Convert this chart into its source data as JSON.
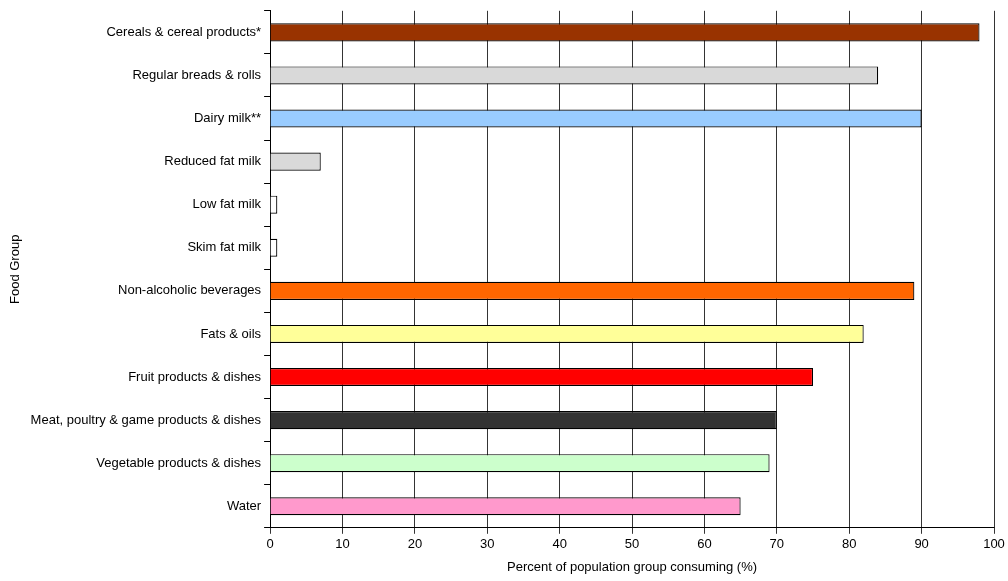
{
  "chart_data": {
    "type": "bar",
    "orientation": "horizontal",
    "xlabel": "Percent of population group consuming (%)",
    "ylabel": "Food Group",
    "categories": [
      "Cereals & cereal products*",
      "Regular breads & rolls",
      "Dairy milk**",
      "Reduced fat milk",
      "Low fat milk",
      "Skim fat milk",
      "Non-alcoholic beverages",
      "Fats & oils",
      "Fruit products & dishes",
      "Meat, poultry & game products & dishes",
      "Vegetable products & dishes",
      "Water"
    ],
    "values": [
      98,
      84,
      90,
      7,
      1,
      1,
      89,
      82,
      75,
      70,
      69,
      65
    ],
    "colors": [
      "#993300",
      "#d9d9d9",
      "#99ccff",
      "#d9d9d9",
      "#ffffff",
      "#ffffff",
      "#ff6600",
      "#ffff99",
      "#ff0000",
      "#333333",
      "#ccffcc",
      "#ff99cc"
    ],
    "xlim": [
      0,
      100
    ],
    "xticks": [
      0,
      10,
      20,
      30,
      40,
      50,
      60,
      70,
      80,
      90,
      100
    ],
    "grid": "x",
    "legend": false
  }
}
